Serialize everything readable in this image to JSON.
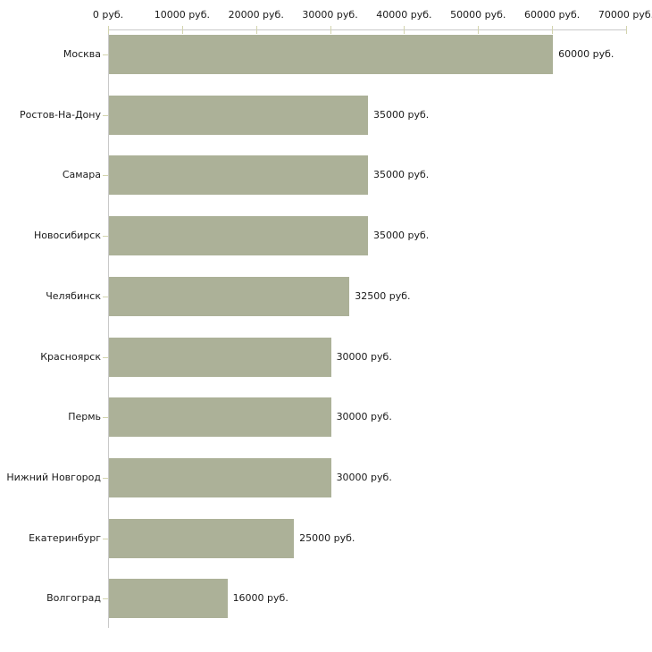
{
  "chart_data": {
    "type": "bar",
    "orientation": "horizontal",
    "title": "",
    "xlabel": "",
    "ylabel": "",
    "categories": [
      "Москва",
      "Ростов-На-Дону",
      "Самара",
      "Новосибирск",
      "Челябинск",
      "Красноярск",
      "Пермь",
      "Нижний Новгород",
      "Екатеринбург",
      "Волгоград"
    ],
    "values": [
      60000,
      35000,
      35000,
      35000,
      32500,
      30000,
      30000,
      30000,
      25000,
      16000
    ],
    "value_labels": [
      "60000 руб.",
      "35000 руб.",
      "35000 руб.",
      "35000 руб.",
      "32500 руб.",
      "30000 руб.",
      "30000 руб.",
      "30000 руб.",
      "25000 руб.",
      "16000 руб."
    ],
    "x_ticks": [
      0,
      10000,
      20000,
      30000,
      40000,
      50000,
      60000,
      70000
    ],
    "x_tick_labels": [
      "0 руб.",
      "10000 руб.",
      "20000 руб.",
      "30000 руб.",
      "40000 руб.",
      "50000 руб.",
      "60000 руб.",
      "70000 руб."
    ],
    "xlim": [
      0,
      70000
    ],
    "unit": "руб.",
    "grid": false,
    "legend_position": "none",
    "colors": {
      "bar": "#acb198",
      "axis_line": "#c9c9c9",
      "tick_mark": "#d3d4ae",
      "text": "#1a1a1a",
      "background": "#ffffff"
    }
  }
}
